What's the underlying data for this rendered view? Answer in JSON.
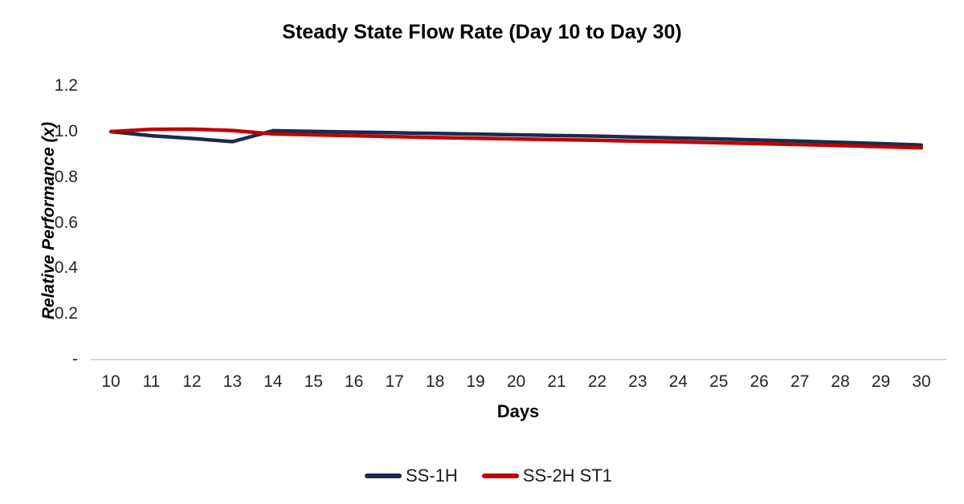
{
  "chart_data": {
    "type": "line",
    "title": "Steady State Flow Rate (Day 10 to Day 30)",
    "xlabel": "Days",
    "ylabel": "Relative Performance (x)",
    "x": [
      10,
      11,
      12,
      13,
      14,
      15,
      16,
      17,
      18,
      19,
      20,
      21,
      22,
      23,
      24,
      25,
      26,
      27,
      28,
      29,
      30
    ],
    "x_ticklabels": [
      "10",
      "11",
      "12",
      "13",
      "14",
      "15",
      "16",
      "17",
      "18",
      "19",
      "20",
      "21",
      "22",
      "23",
      "24",
      "25",
      "26",
      "27",
      "28",
      "29",
      "30"
    ],
    "y_ticks": [
      0,
      0.2,
      0.4,
      0.6,
      0.8,
      1.0,
      1.2
    ],
    "y_ticklabels": [
      "-",
      "0.2",
      "0.4",
      "0.6",
      "0.8",
      "1.0",
      "1.2"
    ],
    "ylim": [
      0,
      1.2
    ],
    "grid": false,
    "legend_position": "bottom",
    "axis_line_color": "#c9c9c9",
    "series": [
      {
        "name": "SS-1H",
        "color": "#1b2a4d",
        "values": [
          1.0,
          0.982,
          0.97,
          0.956,
          1.004,
          1.001,
          0.998,
          0.995,
          0.992,
          0.989,
          0.986,
          0.983,
          0.98,
          0.976,
          0.972,
          0.968,
          0.963,
          0.958,
          0.953,
          0.947,
          0.941
        ]
      },
      {
        "name": "SS-2H ST1",
        "color": "#c00000",
        "values": [
          1.0,
          1.01,
          1.011,
          1.005,
          0.99,
          0.986,
          0.982,
          0.978,
          0.974,
          0.971,
          0.968,
          0.965,
          0.962,
          0.958,
          0.955,
          0.951,
          0.947,
          0.943,
          0.939,
          0.934,
          0.929
        ]
      }
    ]
  }
}
